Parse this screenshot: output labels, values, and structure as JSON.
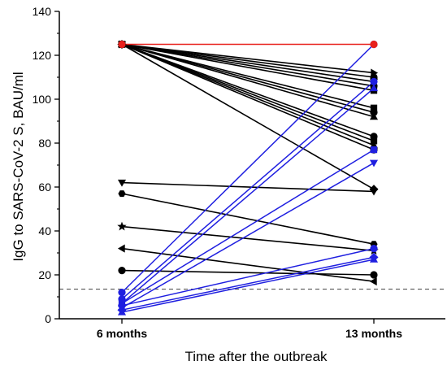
{
  "chart_data": {
    "type": "line",
    "xlabel": "Time after the outbreak",
    "ylabel": "IgG to SARS-CoV-2 S, BAU/ml",
    "categories": [
      "6 months",
      "13 months"
    ],
    "ylim": [
      0,
      140
    ],
    "yticks": [
      0,
      20,
      40,
      60,
      80,
      100,
      120,
      140
    ],
    "grid": false,
    "reference_line": {
      "y": 13.5,
      "style": "dashed"
    },
    "colors": {
      "black": "#000000",
      "blue": "#1f1fe0",
      "red": "#e8201c"
    },
    "series": [
      {
        "color": "red",
        "marker": "circle",
        "values": [
          125,
          125
        ]
      },
      {
        "color": "black",
        "marker": "triangle-right",
        "values": [
          125,
          112
        ]
      },
      {
        "color": "black",
        "marker": "circle",
        "values": [
          125,
          110
        ]
      },
      {
        "color": "black",
        "marker": "triangle-down",
        "values": [
          125,
          108
        ]
      },
      {
        "color": "black",
        "marker": "circle",
        "values": [
          125,
          106
        ]
      },
      {
        "color": "black",
        "marker": "square",
        "values": [
          125,
          104
        ]
      },
      {
        "color": "black",
        "marker": "square",
        "values": [
          125,
          96
        ]
      },
      {
        "color": "black",
        "marker": "circle",
        "values": [
          125,
          94
        ]
      },
      {
        "color": "black",
        "marker": "triangle-up",
        "values": [
          125,
          92
        ]
      },
      {
        "color": "black",
        "marker": "circle",
        "values": [
          125,
          83
        ]
      },
      {
        "color": "black",
        "marker": "square",
        "values": [
          125,
          81
        ]
      },
      {
        "color": "black",
        "marker": "triangle-up",
        "values": [
          125,
          79
        ]
      },
      {
        "color": "black",
        "marker": "circle",
        "values": [
          125,
          77
        ]
      },
      {
        "color": "black",
        "marker": "diamond",
        "values": [
          125,
          59
        ]
      },
      {
        "color": "black",
        "marker": "triangle-down",
        "values": [
          62,
          58
        ]
      },
      {
        "color": "black",
        "marker": "hexagon",
        "values": [
          57,
          34
        ]
      },
      {
        "color": "black",
        "marker": "star",
        "values": [
          42,
          31
        ]
      },
      {
        "color": "black",
        "marker": "triangle-left",
        "values": [
          32,
          17
        ]
      },
      {
        "color": "black",
        "marker": "circle",
        "values": [
          22,
          20
        ]
      },
      {
        "color": "blue",
        "marker": "circle",
        "values": [
          12,
          125
        ]
      },
      {
        "color": "blue",
        "marker": "circle",
        "values": [
          9,
          108
        ]
      },
      {
        "color": "blue",
        "marker": "triangle-up",
        "values": [
          7,
          105
        ]
      },
      {
        "color": "blue",
        "marker": "square",
        "values": [
          7,
          77
        ]
      },
      {
        "color": "blue",
        "marker": "triangle-down",
        "values": [
          5,
          71
        ]
      },
      {
        "color": "blue",
        "marker": "circle",
        "values": [
          6,
          32
        ]
      },
      {
        "color": "blue",
        "marker": "diamond",
        "values": [
          4,
          28
        ]
      },
      {
        "color": "blue",
        "marker": "triangle-up",
        "values": [
          3,
          27
        ]
      }
    ]
  }
}
